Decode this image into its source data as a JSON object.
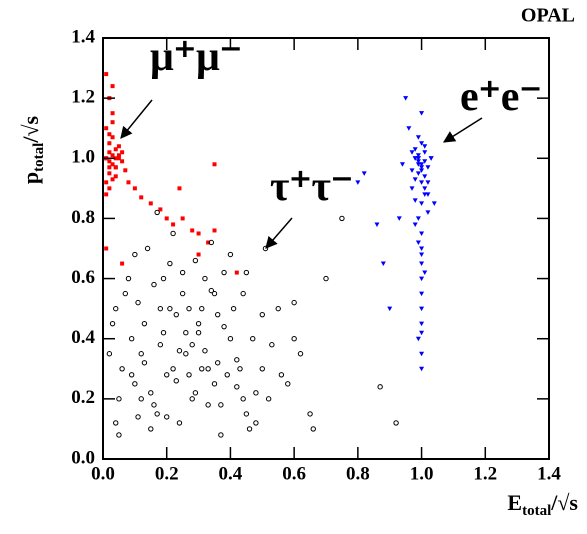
{
  "chart_data": {
    "type": "scatter",
    "title": "OPAL",
    "xlabel": [
      "E",
      "total",
      "/√s"
    ],
    "ylabel": [
      "p",
      "total",
      "/√s"
    ],
    "annotations": [
      "μ⁺μ⁻",
      "τ⁺τ⁻",
      "e⁺e⁻"
    ],
    "xlim": [
      0,
      1.4
    ],
    "ylim": [
      0,
      1.4
    ],
    "xticks": [
      {
        "value": 0,
        "label": "0.0"
      },
      0.2,
      0.4,
      0.6,
      0.8,
      {
        "value": 1,
        "label": "1.0"
      },
      1.2,
      1.4
    ],
    "yticks": [
      {
        "value": 0,
        "label": "0.0"
      },
      0.2,
      0.4,
      0.6,
      0.8,
      {
        "value": 1,
        "label": "1.0"
      },
      1.2,
      1.4
    ],
    "series": [
      {
        "color": "#ff0000",
        "marker": "square",
        "x": [
          0.01,
          0.02,
          0.03,
          0.02,
          0.04,
          0.01,
          0.05,
          0.03,
          0.02,
          0.06,
          0.01,
          0.04,
          0.03,
          0.02,
          0.05,
          0.07,
          0.01,
          0.02,
          0.03,
          0.04,
          0.08,
          0.1,
          0.12,
          0.15,
          0.18,
          0.2,
          0.22,
          0.25,
          0.28,
          0.3,
          0.33,
          0.35,
          0.05,
          0.02,
          0.04,
          0.01,
          0.03,
          0.06,
          0.02,
          0.03,
          0.24,
          0.35,
          0.42,
          0.01,
          0.06,
          0.3,
          0.03,
          0.01,
          0.02,
          0.04
        ],
        "values": [
          1.0,
          1.02,
          0.98,
          1.05,
          0.97,
          1.1,
          1.0,
          1.07,
          0.95,
          0.99,
          0.92,
          1.03,
          1.12,
          0.9,
          1.04,
          0.96,
          1.28,
          1.2,
          1.15,
          0.94,
          0.92,
          0.9,
          0.87,
          0.85,
          0.83,
          0.8,
          0.78,
          0.8,
          0.76,
          0.75,
          0.72,
          0.76,
          1.01,
          1.08,
          1.0,
          0.88,
          0.93,
          1.02,
          0.97,
          1.24,
          0.9,
          0.98,
          0.62,
          0.7,
          0.65,
          0.68,
          1.01,
          1.0,
          0.99,
          0.97
        ]
      },
      {
        "color": "#000000",
        "marker": "circle",
        "x": [
          0.05,
          0.12,
          0.18,
          0.22,
          0.3,
          0.35,
          0.4,
          0.45,
          0.5,
          0.55,
          0.08,
          0.15,
          0.2,
          0.25,
          0.28,
          0.33,
          0.38,
          0.42,
          0.48,
          0.6,
          0.03,
          0.1,
          0.14,
          0.19,
          0.24,
          0.27,
          0.31,
          0.36,
          0.44,
          0.52,
          0.06,
          0.11,
          0.17,
          0.21,
          0.26,
          0.29,
          0.34,
          0.39,
          0.47,
          0.58,
          0.04,
          0.09,
          0.13,
          0.16,
          0.23,
          0.32,
          0.37,
          0.41,
          0.46,
          0.62,
          0.07,
          0.12,
          0.18,
          0.22,
          0.27,
          0.3,
          0.35,
          0.43,
          0.5,
          0.65,
          0.02,
          0.1,
          0.15,
          0.2,
          0.25,
          0.31,
          0.36,
          0.4,
          0.53,
          0.7,
          0.05,
          0.13,
          0.19,
          0.24,
          0.28,
          0.33,
          0.38,
          0.45,
          0.56,
          0.75,
          0.09,
          0.16,
          0.21,
          0.26,
          0.29,
          0.34,
          0.42,
          0.48,
          0.6,
          0.87,
          0.04,
          0.11,
          0.17,
          0.23,
          0.32,
          0.37,
          0.44,
          0.51,
          0.66,
          0.92
        ],
        "values": [
          0.2,
          0.35,
          0.5,
          0.3,
          0.45,
          0.25,
          0.4,
          0.15,
          0.3,
          0.5,
          0.6,
          0.1,
          0.28,
          0.55,
          0.38,
          0.18,
          0.62,
          0.33,
          0.22,
          0.4,
          0.45,
          0.25,
          0.7,
          0.42,
          0.12,
          0.5,
          0.3,
          0.48,
          0.55,
          0.2,
          0.3,
          0.52,
          0.15,
          0.65,
          0.35,
          0.22,
          0.72,
          0.28,
          0.4,
          0.25,
          0.12,
          0.4,
          0.32,
          0.58,
          0.48,
          0.6,
          0.18,
          0.5,
          0.1,
          0.35,
          0.55,
          0.2,
          0.38,
          0.75,
          0.28,
          0.42,
          0.55,
          0.3,
          0.48,
          0.15,
          0.35,
          0.68,
          0.22,
          0.14,
          0.62,
          0.5,
          0.32,
          0.68,
          0.38,
          0.6,
          0.08,
          0.45,
          0.6,
          0.36,
          0.2,
          0.3,
          0.44,
          0.62,
          0.28,
          0.8,
          0.28,
          0.18,
          0.5,
          0.42,
          0.66,
          0.56,
          0.24,
          0.12,
          0.52,
          0.24,
          0.5,
          0.14,
          0.82,
          0.26,
          0.36,
          0.08,
          0.2,
          0.7,
          0.1,
          0.12
        ]
      },
      {
        "color": "#0000ff",
        "marker": "triangle",
        "x": [
          0.98,
          1.0,
          0.99,
          1.01,
          0.97,
          1.02,
          1.0,
          0.98,
          0.99,
          1.01,
          1.0,
          0.96,
          1.03,
          0.99,
          1.0,
          1.02,
          0.98,
          1.0,
          0.97,
          1.01,
          1.0,
          0.99,
          1.0,
          1.01,
          0.98,
          1.0,
          0.99,
          1.02,
          1.0,
          0.95,
          1.0,
          1.01,
          0.99,
          1.0,
          1.03,
          0.98,
          1.0,
          0.99,
          1.0,
          1.04,
          0.82,
          0.86,
          0.88,
          0.9,
          0.93,
          0.8,
          0.94,
          1.0,
          0.99,
          1.01,
          1.0,
          0.98,
          1.0,
          1.02,
          0.99,
          1.0,
          1.01,
          0.97,
          1.0,
          0.99
        ],
        "values": [
          1.0,
          0.98,
          0.95,
          1.02,
          0.9,
          0.97,
          1.05,
          0.93,
          1.0,
          0.88,
          0.85,
          1.1,
          1.0,
          0.8,
          0.75,
          0.92,
          1.03,
          0.7,
          0.96,
          0.99,
          0.65,
          1.0,
          0.6,
          0.94,
          0.86,
          0.55,
          1.07,
          0.82,
          0.5,
          1.2,
          0.45,
          0.9,
          0.4,
          0.97,
          1.0,
          0.78,
          0.35,
          1.01,
          0.3,
          0.85,
          0.95,
          0.78,
          0.65,
          0.5,
          0.8,
          0.92,
          0.98,
          1.15,
          0.99,
          1.04,
          0.92,
          1.0,
          0.96,
          0.88,
          0.72,
          0.68,
          0.62,
          1.02,
          0.42,
          0.98
        ]
      }
    ]
  }
}
